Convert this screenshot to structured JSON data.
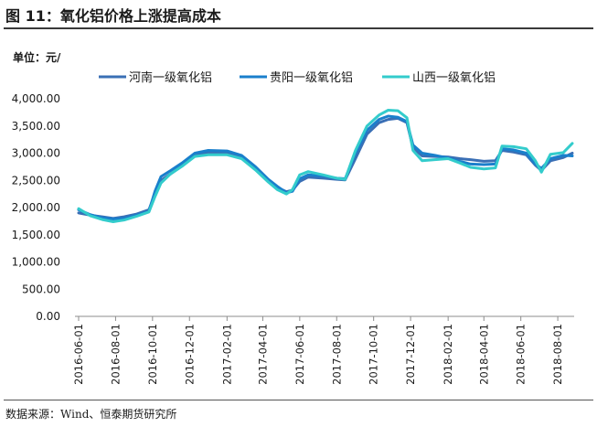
{
  "figure_title": "图 11：氧化铝价格上涨提高成本",
  "source": "数据来源：Wind、恒泰期货研究所",
  "chart_data": {
    "type": "line",
    "title": "图 11：氧化铝价格上涨提高成本",
    "ylabel": "单位：元/",
    "ylim": [
      0,
      4000
    ],
    "y_ticks": [
      "0.00",
      "500.00",
      "1,000.00",
      "1,500.00",
      "2,000.00",
      "2,500.00",
      "3,000.00",
      "3,500.00",
      "4,000.00"
    ],
    "x_ticks": [
      "2016-06-01",
      "2016-08-01",
      "2016-10-01",
      "2016-12-01",
      "2017-02-01",
      "2017-04-01",
      "2017-06-01",
      "2017-08-01",
      "2017-10-01",
      "2017-12-01",
      "2018-02-01",
      "2018-04-01",
      "2018-06-01",
      "2018-08-01"
    ],
    "legend_position": "top",
    "grid": false,
    "series": [
      {
        "name": "河南一级氧化铝",
        "color": "#3a6fb5",
        "points": [
          [
            "2016-06-01",
            1900
          ],
          [
            "2016-06-20",
            1860
          ],
          [
            "2016-07-10",
            1830
          ],
          [
            "2016-07-28",
            1800
          ],
          [
            "2016-08-15",
            1830
          ],
          [
            "2016-09-05",
            1880
          ],
          [
            "2016-09-25",
            1960
          ],
          [
            "2016-10-05",
            2250
          ],
          [
            "2016-10-15",
            2500
          ],
          [
            "2016-10-31",
            2620
          ],
          [
            "2016-11-20",
            2780
          ],
          [
            "2016-12-10",
            2950
          ],
          [
            "2017-01-01",
            3010
          ],
          [
            "2017-02-01",
            3010
          ],
          [
            "2017-02-25",
            2940
          ],
          [
            "2017-03-20",
            2700
          ],
          [
            "2017-04-10",
            2500
          ],
          [
            "2017-04-25",
            2370
          ],
          [
            "2017-05-10",
            2290
          ],
          [
            "2017-05-20",
            2320
          ],
          [
            "2017-06-01",
            2480
          ],
          [
            "2017-06-15",
            2560
          ],
          [
            "2017-07-10",
            2540
          ],
          [
            "2017-08-01",
            2520
          ],
          [
            "2017-08-15",
            2510
          ],
          [
            "2017-09-01",
            2900
          ],
          [
            "2017-09-20",
            3350
          ],
          [
            "2017-10-10",
            3560
          ],
          [
            "2017-10-25",
            3620
          ],
          [
            "2017-11-10",
            3640
          ],
          [
            "2017-11-25",
            3560
          ],
          [
            "2017-12-05",
            3100
          ],
          [
            "2017-12-20",
            2950
          ],
          [
            "2018-01-10",
            2940
          ],
          [
            "2018-02-01",
            2930
          ],
          [
            "2018-02-20",
            2900
          ],
          [
            "2018-03-10",
            2880
          ],
          [
            "2018-04-01",
            2850
          ],
          [
            "2018-04-20",
            2860
          ],
          [
            "2018-05-01",
            3050
          ],
          [
            "2018-05-20",
            3020
          ],
          [
            "2018-06-10",
            2970
          ],
          [
            "2018-06-25",
            2780
          ],
          [
            "2018-07-05",
            2680
          ],
          [
            "2018-07-20",
            2860
          ],
          [
            "2018-08-10",
            2920
          ],
          [
            "2018-08-25",
            3000
          ]
        ]
      },
      {
        "name": "贵阳一级氧化铝",
        "color": "#1a7fcc",
        "points": [
          [
            "2016-06-01",
            1960
          ],
          [
            "2016-06-20",
            1870
          ],
          [
            "2016-07-10",
            1810
          ],
          [
            "2016-07-28",
            1790
          ],
          [
            "2016-08-15",
            1800
          ],
          [
            "2016-09-05",
            1860
          ],
          [
            "2016-09-25",
            1930
          ],
          [
            "2016-10-05",
            2300
          ],
          [
            "2016-10-15",
            2570
          ],
          [
            "2016-10-31",
            2680
          ],
          [
            "2016-11-20",
            2830
          ],
          [
            "2016-12-10",
            3000
          ],
          [
            "2017-01-01",
            3050
          ],
          [
            "2017-02-01",
            3040
          ],
          [
            "2017-02-25",
            2960
          ],
          [
            "2017-03-20",
            2750
          ],
          [
            "2017-04-10",
            2520
          ],
          [
            "2017-04-25",
            2390
          ],
          [
            "2017-05-10",
            2270
          ],
          [
            "2017-05-20",
            2300
          ],
          [
            "2017-06-01",
            2530
          ],
          [
            "2017-06-15",
            2600
          ],
          [
            "2017-07-10",
            2580
          ],
          [
            "2017-08-01",
            2540
          ],
          [
            "2017-08-15",
            2530
          ],
          [
            "2017-09-01",
            3000
          ],
          [
            "2017-09-20",
            3420
          ],
          [
            "2017-10-10",
            3620
          ],
          [
            "2017-10-25",
            3680
          ],
          [
            "2017-11-10",
            3660
          ],
          [
            "2017-11-25",
            3580
          ],
          [
            "2017-12-05",
            3150
          ],
          [
            "2017-12-20",
            3000
          ],
          [
            "2018-01-10",
            2960
          ],
          [
            "2018-02-01",
            2910
          ],
          [
            "2018-02-20",
            2850
          ],
          [
            "2018-03-10",
            2800
          ],
          [
            "2018-04-01",
            2790
          ],
          [
            "2018-04-20",
            2800
          ],
          [
            "2018-05-01",
            3080
          ],
          [
            "2018-05-20",
            3060
          ],
          [
            "2018-06-10",
            3000
          ],
          [
            "2018-06-25",
            2800
          ],
          [
            "2018-07-05",
            2720
          ],
          [
            "2018-07-20",
            2900
          ],
          [
            "2018-08-10",
            2960
          ],
          [
            "2018-08-25",
            2950
          ]
        ]
      },
      {
        "name": "山西一级氧化铝",
        "color": "#33cccc",
        "points": [
          [
            "2016-06-01",
            1980
          ],
          [
            "2016-06-20",
            1850
          ],
          [
            "2016-07-10",
            1780
          ],
          [
            "2016-07-28",
            1740
          ],
          [
            "2016-08-15",
            1770
          ],
          [
            "2016-09-05",
            1840
          ],
          [
            "2016-09-25",
            1920
          ],
          [
            "2016-10-05",
            2200
          ],
          [
            "2016-10-15",
            2450
          ],
          [
            "2016-10-31",
            2620
          ],
          [
            "2016-11-20",
            2770
          ],
          [
            "2016-12-10",
            2940
          ],
          [
            "2017-01-01",
            2970
          ],
          [
            "2017-02-01",
            2970
          ],
          [
            "2017-02-25",
            2900
          ],
          [
            "2017-03-20",
            2690
          ],
          [
            "2017-04-10",
            2470
          ],
          [
            "2017-04-25",
            2330
          ],
          [
            "2017-05-10",
            2250
          ],
          [
            "2017-05-20",
            2330
          ],
          [
            "2017-06-01",
            2600
          ],
          [
            "2017-06-15",
            2660
          ],
          [
            "2017-07-10",
            2600
          ],
          [
            "2017-08-01",
            2540
          ],
          [
            "2017-08-15",
            2520
          ],
          [
            "2017-09-01",
            3050
          ],
          [
            "2017-09-20",
            3500
          ],
          [
            "2017-10-10",
            3700
          ],
          [
            "2017-10-25",
            3790
          ],
          [
            "2017-11-10",
            3780
          ],
          [
            "2017-11-25",
            3650
          ],
          [
            "2017-12-05",
            3050
          ],
          [
            "2017-12-20",
            2860
          ],
          [
            "2018-01-10",
            2880
          ],
          [
            "2018-02-01",
            2900
          ],
          [
            "2018-02-20",
            2820
          ],
          [
            "2018-03-10",
            2740
          ],
          [
            "2018-04-01",
            2710
          ],
          [
            "2018-04-20",
            2730
          ],
          [
            "2018-05-01",
            3130
          ],
          [
            "2018-05-20",
            3120
          ],
          [
            "2018-06-10",
            3080
          ],
          [
            "2018-06-25",
            2860
          ],
          [
            "2018-07-05",
            2650
          ],
          [
            "2018-07-20",
            2980
          ],
          [
            "2018-08-10",
            3010
          ],
          [
            "2018-08-25",
            3180
          ]
        ]
      }
    ]
  }
}
